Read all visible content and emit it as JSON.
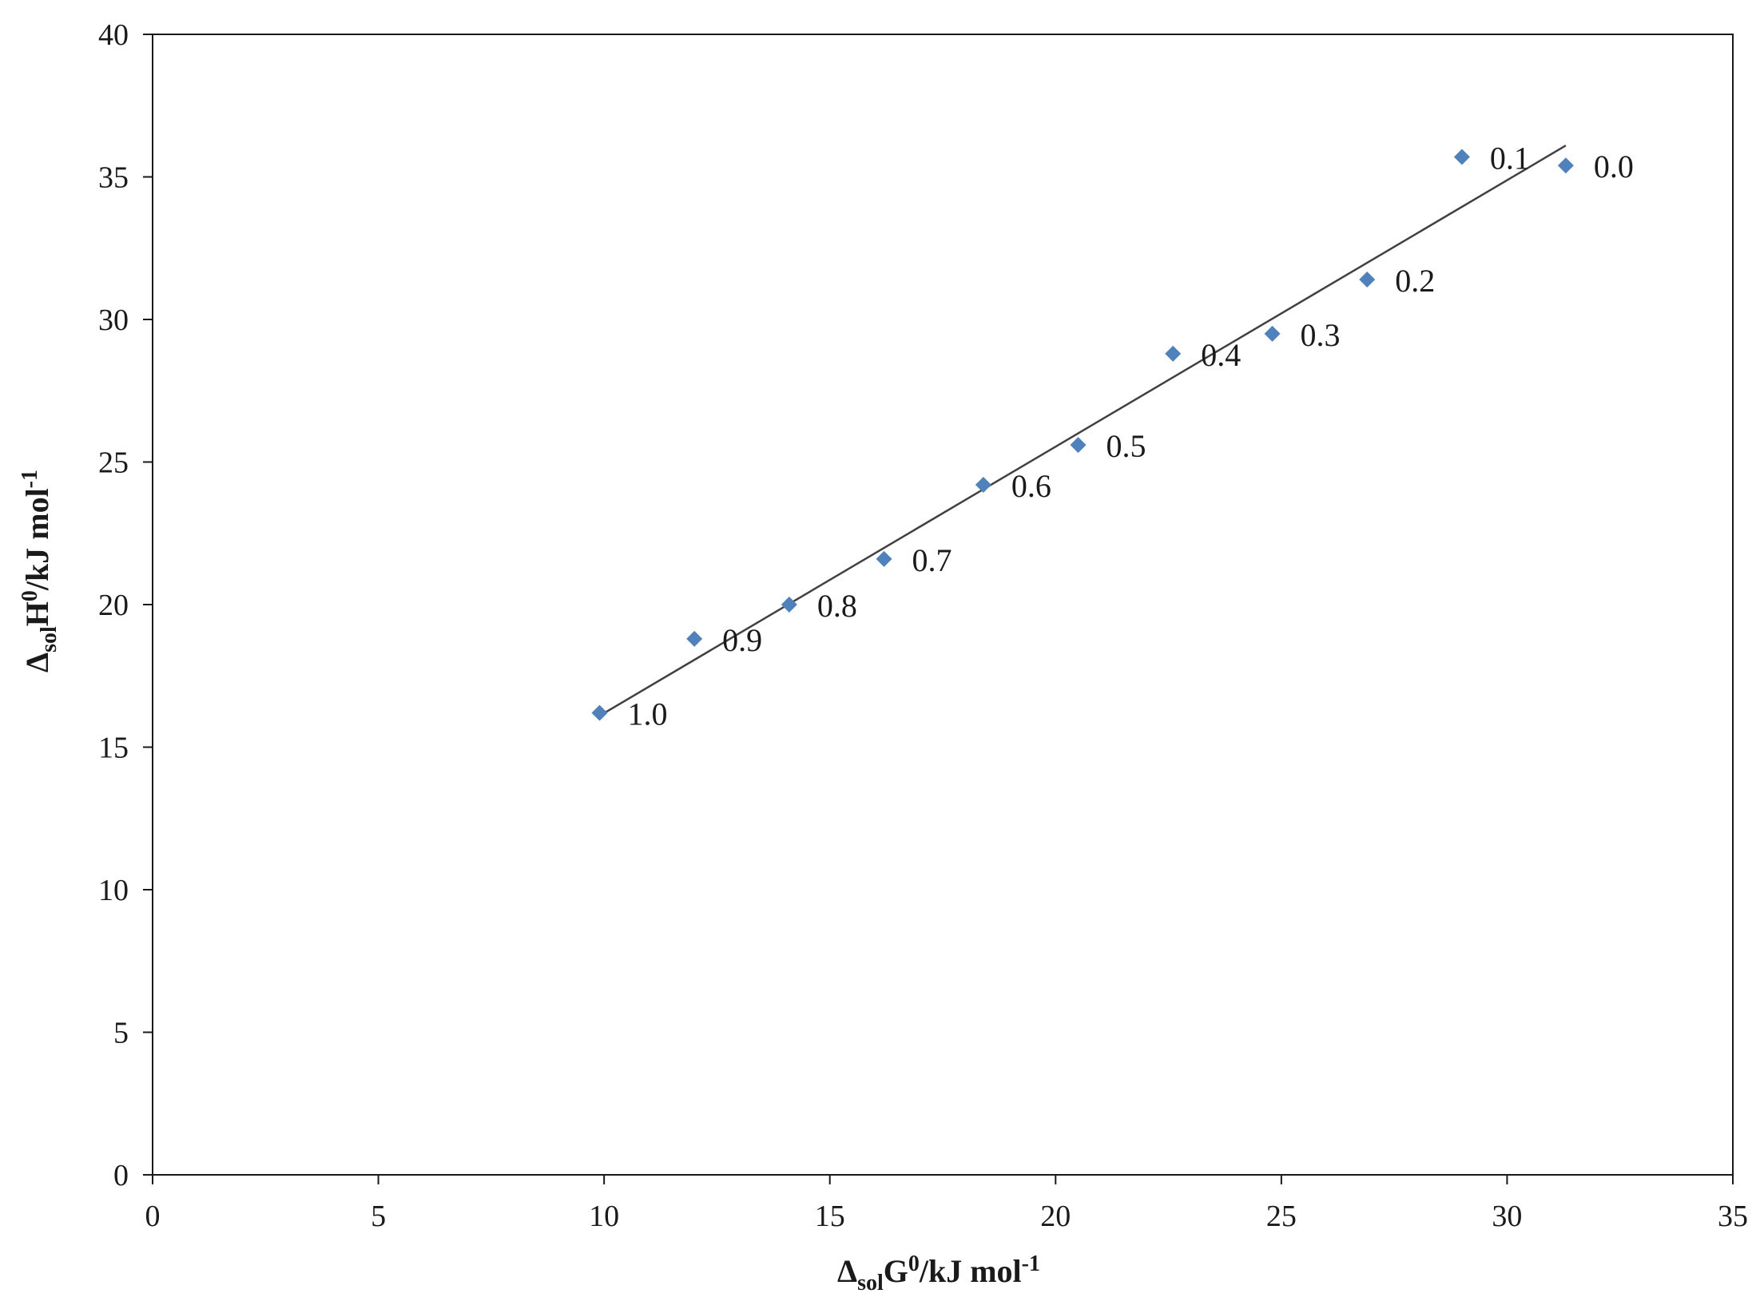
{
  "chart_data": {
    "type": "scatter",
    "title": "",
    "xlabel": {
      "delta": "Δ",
      "sub": "sol",
      "main": "G",
      "sup0": "0",
      "unit": "/kJ mol",
      "sup1": "-1"
    },
    "ylabel": {
      "delta": "Δ",
      "sub": "sol",
      "main": "H",
      "sup0": "0",
      "unit": "/kJ mol",
      "sup1": "-1"
    },
    "xlim": [
      0,
      35
    ],
    "ylim": [
      0,
      40
    ],
    "xticks": [
      0,
      5,
      10,
      15,
      20,
      25,
      30,
      35
    ],
    "yticks": [
      0,
      5,
      10,
      15,
      20,
      25,
      30,
      35,
      40
    ],
    "grid": false,
    "legend": "none",
    "marker": "diamond",
    "marker_color": "#4F81BD",
    "line_color": "#404040",
    "points": [
      {
        "label": "1.0",
        "x": 9.9,
        "y": 16.2
      },
      {
        "label": "0.9",
        "x": 12.0,
        "y": 18.8
      },
      {
        "label": "0.8",
        "x": 14.1,
        "y": 20.0
      },
      {
        "label": "0.7",
        "x": 16.2,
        "y": 21.6
      },
      {
        "label": "0.6",
        "x": 18.4,
        "y": 24.2
      },
      {
        "label": "0.5",
        "x": 20.5,
        "y": 25.6
      },
      {
        "label": "0.4",
        "x": 22.6,
        "y": 28.8
      },
      {
        "label": "0.3",
        "x": 24.8,
        "y": 29.5
      },
      {
        "label": "0.2",
        "x": 26.9,
        "y": 31.4
      },
      {
        "label": "0.1",
        "x": 29.0,
        "y": 35.7
      },
      {
        "label": "0.0",
        "x": 31.3,
        "y": 35.4
      }
    ],
    "trendline": {
      "x": [
        9.9,
        31.3
      ],
      "y": [
        16.1,
        36.1
      ]
    }
  }
}
